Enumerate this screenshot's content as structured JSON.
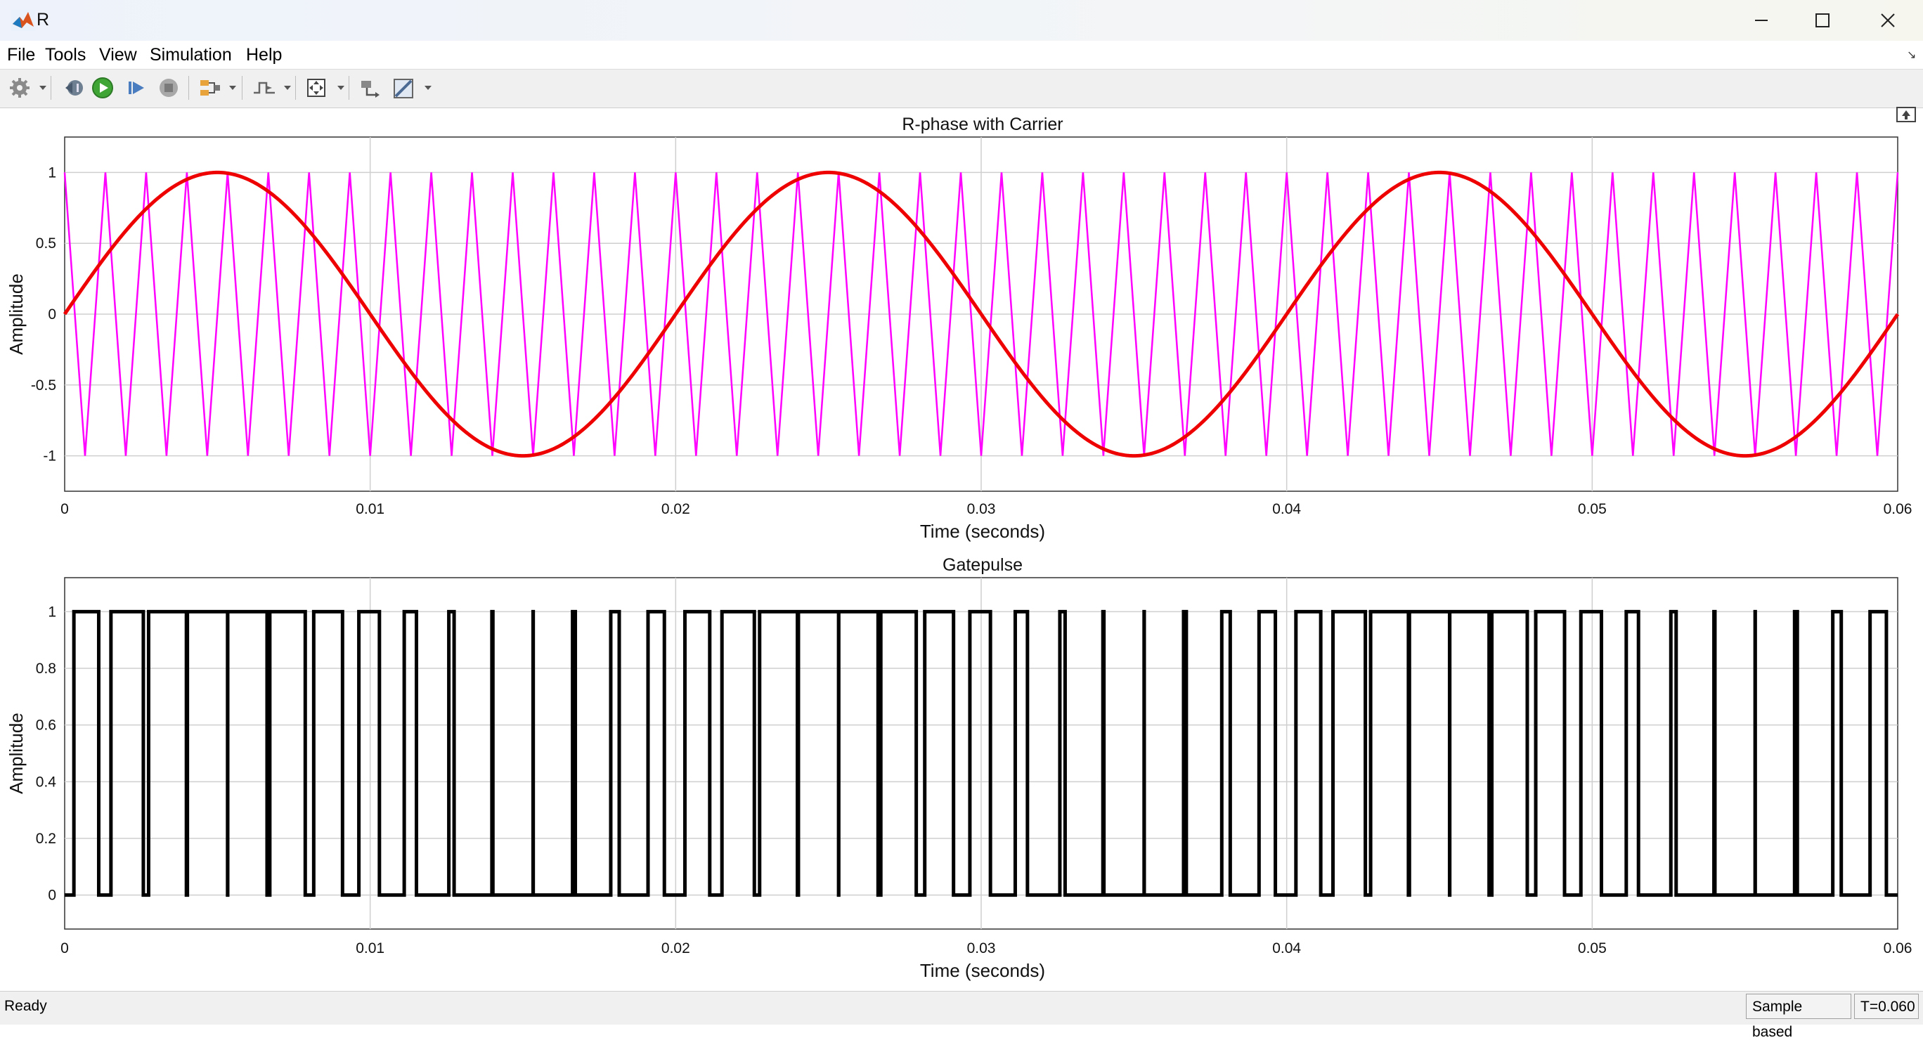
{
  "window": {
    "title": "R"
  },
  "menu": [
    "File",
    "Tools",
    "View",
    "Simulation",
    "Help"
  ],
  "toolbar": {
    "icons": [
      "gear-icon",
      "step-back-icon",
      "run-icon",
      "step-forward-icon",
      "stop-icon",
      "signal-select-icon",
      "triggers-icon",
      "zoom-fit-icon",
      "highlight-block-icon",
      "measurements-icon"
    ]
  },
  "plots": [
    {
      "title": "R-phase with Carrier",
      "xlabel": "Time (seconds)",
      "ylabel": "Amplitude",
      "xticks": [
        "0",
        "0.01",
        "0.02",
        "0.03",
        "0.04",
        "0.05",
        "0.06"
      ],
      "yticks": [
        "1",
        "0.5",
        "0",
        "-0.5",
        "-1"
      ]
    },
    {
      "title": "Gatepulse",
      "xlabel": "Time (seconds)",
      "ylabel": "Amplitude",
      "xticks": [
        "0",
        "0.01",
        "0.02",
        "0.03",
        "0.04",
        "0.05",
        "0.06"
      ],
      "yticks": [
        "1",
        "0.8",
        "0.6",
        "0.4",
        "0.2",
        "0"
      ]
    }
  ],
  "chart_data": [
    {
      "type": "line",
      "title": "R-phase with Carrier",
      "xlabel": "Time (seconds)",
      "ylabel": "Amplitude",
      "xlim": [
        0,
        0.06
      ],
      "ylim": [
        -1.25,
        1.25
      ],
      "grid": true,
      "series": [
        {
          "color": "#ff00ff",
          "shape": "triangle",
          "frequency_hz": 750,
          "amplitude": 1,
          "x": [
            0,
            0.06
          ]
        },
        {
          "color": "#ee0000",
          "shape": "sine",
          "frequency_hz": 50,
          "amplitude": 1,
          "x": [
            0,
            0.06
          ]
        }
      ]
    },
    {
      "type": "line",
      "title": "Gatepulse",
      "xlabel": "Time (seconds)",
      "ylabel": "Amplitude",
      "xlim": [
        0,
        0.06
      ],
      "ylim": [
        -0.12,
        1.12
      ],
      "grid": true,
      "series": [
        {
          "color": "#000000",
          "shape": "step",
          "levels": [
            0,
            1
          ],
          "description_of_source": "sine > carrier"
        }
      ]
    }
  ],
  "status": {
    "text": "Ready",
    "mode": "Sample based",
    "time": "T=0.060"
  }
}
